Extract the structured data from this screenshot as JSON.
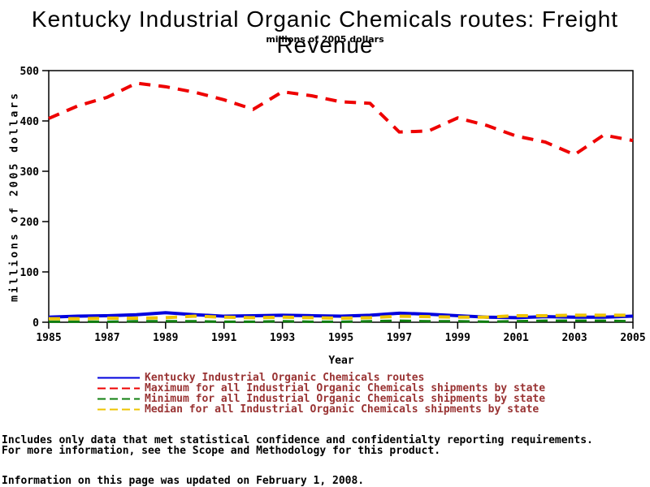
{
  "title": "Kentucky Industrial Organic Chemicals routes: Freight Revenue",
  "subtitle": "millions of 2005 dollars",
  "chart_data": {
    "type": "line",
    "title": "Kentucky Industrial Organic Chemicals routes: Freight Revenue",
    "subtitle": "millions of 2005 dollars",
    "xlabel": "Year",
    "ylabel": "millions of 2005 dollars",
    "xlim": [
      1985,
      2005
    ],
    "ylim": [
      0,
      500
    ],
    "xticks": [
      1985,
      1987,
      1989,
      1991,
      1993,
      1995,
      1997,
      1999,
      2001,
      2003,
      2005
    ],
    "yticks": [
      0,
      100,
      200,
      300,
      400,
      500
    ],
    "grid": false,
    "legend_position": "bottom",
    "legend_text_color": "#993333",
    "x": [
      1985,
      1986,
      1987,
      1988,
      1989,
      1990,
      1991,
      1992,
      1993,
      1994,
      1995,
      1996,
      1997,
      1998,
      1999,
      2000,
      2001,
      2002,
      2003,
      2004,
      2005
    ],
    "series": [
      {
        "name": "Kentucky Industrial Organic Chemicals routes",
        "color": "#0000DD",
        "style": "solid",
        "values": [
          10,
          12,
          13,
          15,
          19,
          15,
          12,
          13,
          14,
          13,
          12,
          14,
          18,
          16,
          13,
          10,
          9,
          11,
          10,
          10,
          12
        ]
      },
      {
        "name": "Maximum for all Industrial Organic Chemicals shipments by state",
        "color": "#EE0000",
        "style": "dashed",
        "values": [
          405,
          430,
          447,
          475,
          468,
          457,
          442,
          423,
          458,
          450,
          438,
          435,
          378,
          380,
          406,
          391,
          370,
          358,
          333,
          372,
          361
        ]
      },
      {
        "name": "Minimum for all Industrial Organic Chemicals shipments by state",
        "color": "#107F10",
        "style": "dashed",
        "values": [
          1,
          1,
          1,
          2,
          2,
          2,
          1,
          1,
          2,
          1,
          1,
          2,
          3,
          2,
          2,
          1,
          2,
          3,
          3,
          3,
          2
        ]
      },
      {
        "name": "Median for all Industrial Organic Chemicals shipments by state",
        "color": "#EEC400",
        "style": "dashed",
        "values": [
          7,
          7,
          8,
          8,
          9,
          12,
          10,
          9,
          10,
          9,
          8,
          9,
          12,
          11,
          10,
          10,
          13,
          13,
          14,
          14,
          14
        ]
      }
    ]
  },
  "footer": {
    "note1": "Includes only data that met statistical confidence and confidentialty reporting requirements.",
    "note2": "For more information, see the Scope and Methodology for this product.",
    "updated": "Information on this page was updated on February 1, 2008."
  }
}
